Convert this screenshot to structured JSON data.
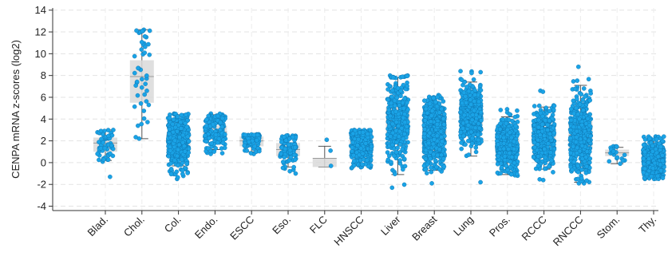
{
  "chart_data": {
    "type": "scatter",
    "title": "",
    "xlabel": "",
    "ylabel": "CENPA mRNA z-scores (log2)",
    "ylim": [
      -4.4,
      14.2
    ],
    "yticks": [
      -4,
      -2,
      0,
      2,
      4,
      6,
      8,
      10,
      12,
      14
    ],
    "grid": true,
    "legend": "none",
    "point_color": "#1aa3e6",
    "point_edge_color": "#0d6fa8",
    "box_color": "#d9d9d9",
    "categories": [
      "Blad.",
      "Chol.",
      "Col.",
      "Endo.",
      "ESCC",
      "Eso.",
      "FLC",
      "HNSCC",
      "Liver",
      "Breast",
      "Lung",
      "Pros.",
      "RCCC",
      "RNCCC",
      "Stom.",
      "Thy."
    ],
    "groups": [
      {
        "name": "Blad.",
        "n": 60,
        "min": -1.3,
        "q1": 1.0,
        "median": 1.8,
        "q3": 2.3,
        "max": 3.0,
        "wlo": 0.2,
        "whi": 3.0
      },
      {
        "name": "Chol.",
        "n": 45,
        "min": 2.2,
        "q1": 5.5,
        "median": 7.9,
        "q3": 9.4,
        "max": 12.2,
        "wlo": 2.2,
        "whi": 12.2
      },
      {
        "name": "Col.",
        "n": 380,
        "min": -1.5,
        "q1": 1.0,
        "median": 2.0,
        "q3": 2.7,
        "max": 4.5,
        "wlo": -0.3,
        "whi": 4.4
      },
      {
        "name": "Endo.",
        "n": 160,
        "min": 0.8,
        "q1": 2.1,
        "median": 2.8,
        "q3": 3.4,
        "max": 4.5,
        "wlo": 1.2,
        "whi": 4.4
      },
      {
        "name": "ESCC",
        "n": 80,
        "min": 0.8,
        "q1": 1.5,
        "median": 2.0,
        "q3": 2.4,
        "max": 2.6,
        "wlo": 1.0,
        "whi": 2.6
      },
      {
        "name": "Eso.",
        "n": 100,
        "min": -1.0,
        "q1": 0.6,
        "median": 1.2,
        "q3": 1.8,
        "max": 2.5,
        "wlo": -0.4,
        "whi": 2.4
      },
      {
        "name": "FLC",
        "n": 3,
        "min": -0.4,
        "q1": -0.4,
        "median": 0.4,
        "q3": 0.4,
        "max": 2.1,
        "wlo": -0.4,
        "whi": 1.5
      },
      {
        "name": "HNSCC",
        "n": 300,
        "min": -0.5,
        "q1": 0.9,
        "median": 1.6,
        "q3": 2.2,
        "max": 3.0,
        "wlo": 0.3,
        "whi": 2.9
      },
      {
        "name": "Liver",
        "n": 370,
        "min": -2.3,
        "q1": 2.6,
        "median": 3.8,
        "q3": 5.1,
        "max": 8.0,
        "wlo": -1.1,
        "whi": 7.8
      },
      {
        "name": "Breast",
        "n": 700,
        "min": -1.9,
        "q1": 1.7,
        "median": 2.8,
        "q3": 3.6,
        "max": 6.2,
        "wlo": -0.7,
        "whi": 6.0
      },
      {
        "name": "Lung",
        "n": 500,
        "min": -1.8,
        "q1": 3.4,
        "median": 4.5,
        "q3": 5.4,
        "max": 8.4,
        "wlo": 0.6,
        "whi": 7.4
      },
      {
        "name": "Pros.",
        "n": 400,
        "min": -1.2,
        "q1": 0.7,
        "median": 1.5,
        "q3": 2.3,
        "max": 4.9,
        "wlo": -1.1,
        "whi": 4.2
      },
      {
        "name": "RCCC",
        "n": 380,
        "min": -1.6,
        "q1": 1.1,
        "median": 2.1,
        "q3": 2.9,
        "max": 6.6,
        "wlo": -0.6,
        "whi": 5.1
      },
      {
        "name": "RNCCC",
        "n": 450,
        "min": -1.9,
        "q1": 1.3,
        "median": 2.5,
        "q3": 3.8,
        "max": 8.8,
        "wlo": -1.8,
        "whi": 7.1
      },
      {
        "name": "Stom.",
        "n": 20,
        "min": -0.1,
        "q1": 0.6,
        "median": 0.9,
        "q3": 1.2,
        "max": 1.5,
        "wlo": -0.1,
        "whi": 1.4
      },
      {
        "name": "Thy.",
        "n": 450,
        "min": -1.5,
        "q1": -0.3,
        "median": 0.3,
        "q3": 0.8,
        "max": 2.4,
        "wlo": -1.4,
        "whi": 2.2
      }
    ]
  }
}
